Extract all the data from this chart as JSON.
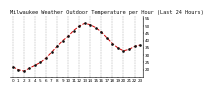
{
  "title": "Milwaukee Weather Outdoor Temperature per Hour (Last 24 Hours)",
  "hours": [
    0,
    1,
    2,
    3,
    4,
    5,
    6,
    7,
    8,
    9,
    10,
    11,
    12,
    13,
    14,
    15,
    16,
    17,
    18,
    19,
    20,
    21,
    22,
    23
  ],
  "temps": [
    22,
    20,
    19,
    21,
    23,
    25,
    28,
    32,
    36,
    40,
    43,
    47,
    50,
    52,
    51,
    49,
    46,
    42,
    38,
    35,
    33,
    34,
    36,
    37
  ],
  "line_color": "#cc0000",
  "marker_color": "#111111",
  "bg_color": "#ffffff",
  "grid_color": "#888888",
  "title_color": "#111111",
  "ylim": [
    15,
    57
  ],
  "yticks": [
    20,
    25,
    30,
    35,
    40,
    45,
    50,
    55
  ],
  "ylabels": [
    "20",
    "25",
    "30",
    "35",
    "40",
    "45",
    "50",
    "55"
  ],
  "xlim": [
    -0.5,
    23.5
  ],
  "xticks": [
    0,
    1,
    2,
    3,
    4,
    5,
    6,
    7,
    8,
    9,
    10,
    11,
    12,
    13,
    14,
    15,
    16,
    17,
    18,
    19,
    20,
    21,
    22,
    23
  ],
  "title_fontsize": 3.8,
  "tick_fontsize": 3.0,
  "linewidth": 0.7,
  "markersize": 1.8
}
